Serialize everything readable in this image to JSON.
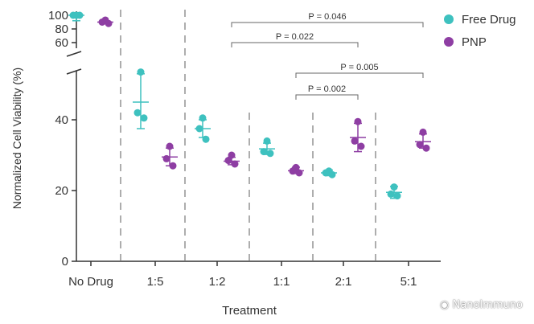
{
  "chart_data": {
    "type": "scatter",
    "xlabel": "Treatment",
    "ylabel": "Normalized Cell Viability (%)",
    "categories": [
      "No Drug",
      "1:5",
      "1:2",
      "1:1",
      "2:1",
      "5:1"
    ],
    "y_ticks_lower": [
      "0",
      "20",
      "40"
    ],
    "y_ticks_upper": [
      "60",
      "80",
      "100"
    ],
    "ylim_lower": [
      0,
      60
    ],
    "ylim_upper": [
      60,
      100
    ],
    "axis_break": true,
    "legend_position": "top-right",
    "series": [
      {
        "name": "Free Drug",
        "color": "#3ec1bf",
        "points": [
          [
            100,
            100,
            100
          ],
          [
            53.5,
            42,
            40.5
          ],
          [
            40.5,
            37.5,
            34.5
          ],
          [
            34,
            31,
            30.5
          ],
          [
            25.5,
            25,
            24.5
          ],
          [
            21,
            19,
            18.5
          ]
        ],
        "mean": [
          100,
          45,
          37.5,
          31.8,
          25,
          19.5
        ],
        "error": [
          [
            92,
            100
          ],
          [
            37.5,
            53
          ],
          [
            35,
            40
          ],
          [
            30.2,
            33.4
          ],
          [
            24.2,
            25.8
          ],
          [
            17.8,
            21.2
          ]
        ]
      },
      {
        "name": "PNP",
        "color": "#8e3ea3",
        "points": [
          [
            93,
            90,
            88
          ],
          [
            32.5,
            29,
            27
          ],
          [
            30,
            28.5,
            27.5
          ],
          [
            26.5,
            25.5,
            25
          ],
          [
            39.5,
            34,
            32.5
          ],
          [
            36.5,
            33,
            32
          ]
        ],
        "mean": [
          90,
          29.5,
          28.3,
          25.6,
          35,
          33.8
        ],
        "error": [
          [
            88,
            92
          ],
          [
            27,
            32
          ],
          [
            27.3,
            29.4
          ],
          [
            24.8,
            26.6
          ],
          [
            31,
            39
          ],
          [
            32,
            36
          ]
        ]
      }
    ],
    "annotations": [
      {
        "text": "P = 0.046",
        "from": 2,
        "to": 5
      },
      {
        "text": "P = 0.022",
        "from": 2,
        "to": 4
      },
      {
        "text": "P = 0.005",
        "from": 3,
        "to": 5
      },
      {
        "text": "P = 0.002",
        "from": 3,
        "to": 4
      }
    ]
  },
  "watermark": "NanoImmuno"
}
